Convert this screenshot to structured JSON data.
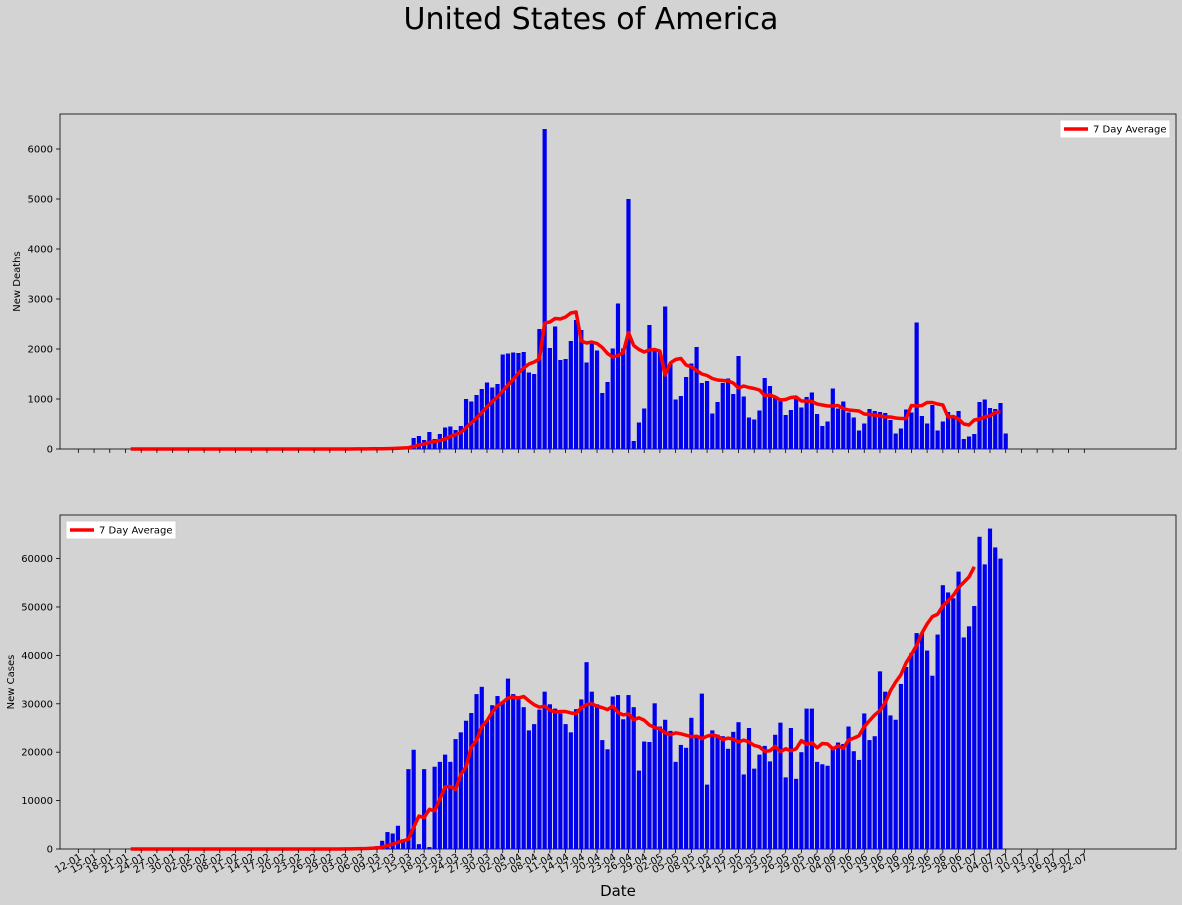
{
  "title": "United States of America",
  "xlabel": "Date",
  "x_ticks": [
    "12-01",
    "15-01",
    "18-01",
    "21-01",
    "24-01",
    "27-01",
    "30-01",
    "02-02",
    "05-02",
    "08-02",
    "11-02",
    "14-02",
    "17-02",
    "20-02",
    "23-02",
    "26-02",
    "29-02",
    "03-03",
    "06-03",
    "09-03",
    "12-03",
    "15-03",
    "18-03",
    "21-03",
    "24-03",
    "27-03",
    "30-03",
    "02-04",
    "05-04",
    "08-04",
    "11-04",
    "14-04",
    "17-04",
    "20-04",
    "23-04",
    "26-04",
    "29-04",
    "02-05",
    "05-05",
    "08-05",
    "11-05",
    "14-05",
    "17-05",
    "20-05",
    "23-05",
    "26-05",
    "29-05",
    "01-06",
    "04-06",
    "07-06",
    "10-06",
    "13-06",
    "16-06",
    "19-06",
    "22-06",
    "25-06",
    "28-06",
    "01-07",
    "04-07",
    "07-07",
    "10-07",
    "13-07",
    "16-07",
    "19-07",
    "22-07"
  ],
  "chart_data": [
    {
      "type": "bar",
      "ylabel": "New Deaths",
      "ylim": [
        0,
        6700
      ],
      "yticks": [
        0,
        1000,
        2000,
        3000,
        4000,
        5000,
        6000
      ],
      "legend": {
        "label": "7 Day Average",
        "placement": "upper right"
      },
      "x_start": "22-01",
      "colors": {
        "bars": "#0000ee",
        "line": "#ff0000"
      },
      "values": [
        0,
        0,
        0,
        0,
        0,
        0,
        0,
        0,
        0,
        0,
        0,
        0,
        0,
        0,
        0,
        0,
        0,
        0,
        0,
        0,
        0,
        0,
        0,
        0,
        0,
        0,
        0,
        0,
        0,
        0,
        0,
        0,
        0,
        0,
        0,
        0,
        0,
        0,
        0,
        0,
        0,
        0,
        0,
        0,
        0,
        0,
        0,
        0,
        0,
        0,
        0,
        0,
        0,
        0,
        0,
        0,
        0,
        0,
        0,
        0,
        0,
        0,
        0,
        0,
        0,
        0,
        0,
        0,
        0,
        0,
        0,
        0,
        0,
        0,
        0,
        0,
        0,
        0,
        0,
        0,
        0,
        0,
        0,
        0,
        0,
        0,
        0,
        0,
        0,
        0,
        0,
        0,
        0,
        0,
        0,
        0,
        0,
        0,
        0,
        0,
        0,
        0,
        0,
        0,
        0,
        0,
        0,
        0,
        0,
        0,
        0,
        0,
        0,
        0,
        0,
        0,
        0,
        0,
        0,
        0,
        0,
        0,
        0,
        0,
        0,
        0,
        0,
        0,
        0,
        0,
        0,
        0,
        0,
        0,
        0,
        0,
        0,
        0,
        0,
        0,
        0,
        0,
        0,
        0,
        0,
        0,
        0,
        0,
        0,
        0,
        0,
        0,
        0,
        0,
        0,
        0,
        0,
        0,
        0,
        0,
        0,
        0,
        0,
        0,
        0,
        0,
        0,
        0,
        0,
        0,
        0,
        0,
        0,
        0,
        0
      ],
      "daily_values": [
        0,
        0,
        0,
        0,
        0,
        0,
        0,
        0,
        0,
        0,
        0,
        0,
        0,
        0,
        0,
        0,
        0,
        0,
        0,
        0,
        0,
        0,
        0,
        0,
        0,
        0,
        0,
        0,
        0,
        0,
        0,
        0,
        0,
        0,
        0,
        0,
        0,
        0,
        0,
        0,
        2,
        3,
        3,
        4,
        6,
        9,
        8,
        9,
        12,
        20,
        30,
        35,
        40,
        55,
        220,
        260,
        180,
        340,
        200,
        300,
        430,
        450,
        380,
        460,
        1000,
        950,
        1080,
        1200,
        1330,
        1230,
        1300,
        1890,
        1910,
        1930,
        1920,
        1940,
        1530,
        1500,
        2400,
        6400,
        2020,
        2450,
        1780,
        1800,
        2160,
        2580,
        2380,
        1730,
        2130,
        1970,
        1120,
        1340,
        2010,
        2910,
        2010,
        5000,
        160,
        530,
        810,
        2480,
        1960,
        1940,
        2850,
        1700,
        990,
        1060,
        1440,
        1710,
        2040,
        1320,
        1360,
        710,
        940,
        1320,
        1410,
        1100,
        1860,
        1050,
        630,
        590,
        770,
        1420,
        1260,
        1020,
        1010,
        680,
        780,
        1000,
        830,
        1040,
        1130,
        700,
        460,
        550,
        1210,
        810,
        950,
        730,
        630,
        370,
        510,
        800,
        760,
        740,
        720,
        580,
        310,
        410,
        790,
        730,
        2530,
        660,
        510,
        880,
        370,
        550,
        740,
        650,
        760,
        200,
        250,
        300,
        940,
        990,
        820,
        800,
        920,
        310
      ],
      "avg": [
        0,
        0,
        0,
        0,
        0,
        0,
        0,
        0,
        0,
        0,
        0,
        0,
        0,
        0,
        0,
        0,
        0,
        0,
        0,
        0,
        0,
        0,
        0,
        0,
        0,
        0,
        0,
        0,
        0,
        0,
        0,
        0,
        0,
        0,
        0,
        0,
        0,
        0,
        0,
        0,
        1,
        1,
        1,
        2,
        2,
        3,
        4,
        5,
        6,
        8,
        11,
        15,
        19,
        25,
        50,
        80,
        100,
        130,
        150,
        170,
        200,
        250,
        290,
        330,
        430,
        520,
        620,
        730,
        840,
        950,
        1040,
        1160,
        1280,
        1390,
        1520,
        1620,
        1700,
        1740,
        1800,
        2520,
        2540,
        2610,
        2600,
        2640,
        2720,
        2740,
        2160,
        2120,
        2140,
        2110,
        2030,
        1910,
        1840,
        1870,
        1930,
        2330,
        2070,
        1990,
        1940,
        1980,
        1990,
        1960,
        1480,
        1720,
        1790,
        1810,
        1680,
        1640,
        1570,
        1500,
        1470,
        1410,
        1380,
        1370,
        1360,
        1320,
        1220,
        1260,
        1230,
        1210,
        1180,
        1070,
        1080,
        1040,
        980,
        990,
        1030,
        1040,
        960,
        960,
        950,
        900,
        880,
        860,
        860,
        870,
        810,
        780,
        770,
        760,
        700,
        690,
        680,
        660,
        640,
        640,
        620,
        610,
        610,
        870,
        860,
        870,
        930,
        930,
        900,
        880,
        640,
        650,
        600,
        500,
        480,
        580,
        600,
        640,
        660,
        730,
        740
      ],
      "avg_label": "7 Day Average"
    },
    {
      "type": "bar",
      "ylabel": "New Cases",
      "ylim": [
        0,
        69000
      ],
      "yticks": [
        0,
        10000,
        20000,
        30000,
        40000,
        50000,
        60000
      ],
      "legend": {
        "label": "7 Day Average",
        "placement": "upper left"
      },
      "x_start": "22-01",
      "colors": {
        "bars": "#0000ee",
        "line": "#ff0000"
      },
      "daily_values": [
        0,
        0,
        0,
        0,
        0,
        0,
        0,
        0,
        0,
        0,
        0,
        0,
        0,
        0,
        0,
        0,
        0,
        0,
        0,
        0,
        0,
        0,
        0,
        0,
        0,
        0,
        0,
        0,
        0,
        0,
        0,
        0,
        0,
        0,
        0,
        0,
        0,
        0,
        0,
        0,
        50,
        80,
        120,
        180,
        250,
        350,
        450,
        600,
        1700,
        3500,
        3200,
        4800,
        2000,
        16500,
        20500,
        1000,
        16500,
        400,
        17000,
        18000,
        19500,
        18000,
        22700,
        24100,
        26500,
        28100,
        32000,
        33500,
        26500,
        29700,
        31600,
        30200,
        35200,
        32000,
        31000,
        29300,
        24500,
        25800,
        28800,
        32500,
        29900,
        29000,
        28000,
        25800,
        24100,
        28900,
        30900,
        38600,
        32500,
        29900,
        22500,
        20600,
        31500,
        31800,
        26800,
        31800,
        29300,
        16200,
        22200,
        22100,
        30100,
        25300,
        26700,
        24400,
        18000,
        21500,
        20900,
        27100,
        23000,
        32100,
        13300,
        24500,
        23600,
        23300,
        20700,
        24200,
        26200,
        15400,
        25000,
        16600,
        19500,
        21300,
        18100,
        23600,
        26100,
        14800,
        25000,
        14500,
        20000,
        29000,
        29000,
        18000,
        17500,
        17200,
        20800,
        22000,
        21700,
        25300,
        20200,
        18400,
        28000,
        22500,
        23300,
        36700,
        32500,
        27600,
        26700,
        34100,
        37600,
        40500,
        44600,
        44600,
        41000,
        35800,
        44300,
        54500,
        53000,
        51800,
        57300,
        43700,
        46000,
        50200,
        64500,
        58800,
        66200,
        62300,
        60000
      ],
      "avg": [
        0,
        0,
        0,
        0,
        0,
        0,
        0,
        0,
        0,
        0,
        0,
        0,
        0,
        0,
        0,
        0,
        0,
        0,
        0,
        0,
        0,
        0,
        0,
        0,
        0,
        0,
        0,
        0,
        0,
        0,
        0,
        0,
        0,
        0,
        0,
        0,
        0,
        0,
        0,
        0,
        10,
        20,
        30,
        50,
        80,
        100,
        150,
        200,
        400,
        700,
        1000,
        1400,
        1700,
        2000,
        4500,
        6800,
        6500,
        8200,
        7900,
        10300,
        12800,
        12900,
        12300,
        15400,
        17000,
        21000,
        22500,
        25300,
        26500,
        28300,
        29600,
        30300,
        31200,
        31400,
        31200,
        31500,
        30600,
        29800,
        29300,
        29500,
        28700,
        28300,
        28400,
        28400,
        28100,
        28000,
        29200,
        29800,
        30000,
        29500,
        29200,
        28800,
        29500,
        28200,
        27700,
        27900,
        26700,
        27100,
        26600,
        25600,
        25100,
        24800,
        24000,
        23600,
        24000,
        23800,
        23500,
        23200,
        23300,
        22800,
        23300,
        23600,
        23300,
        22600,
        22900,
        22700,
        22100,
        22500,
        22100,
        21400,
        21100,
        20200,
        20300,
        21200,
        20100,
        20700,
        20300,
        20700,
        22400,
        21600,
        22000,
        20900,
        21800,
        21700,
        20700,
        21300,
        20800,
        22500,
        22900,
        23400,
        25300,
        26500,
        27700,
        28600,
        30200,
        32700,
        34500,
        36000,
        38500,
        40200,
        42100,
        44600,
        46500,
        48000,
        48500,
        50200,
        51300,
        52400,
        54000,
        55100,
        56200,
        58300
      ],
      "avg_label": "7 Day Average"
    }
  ]
}
